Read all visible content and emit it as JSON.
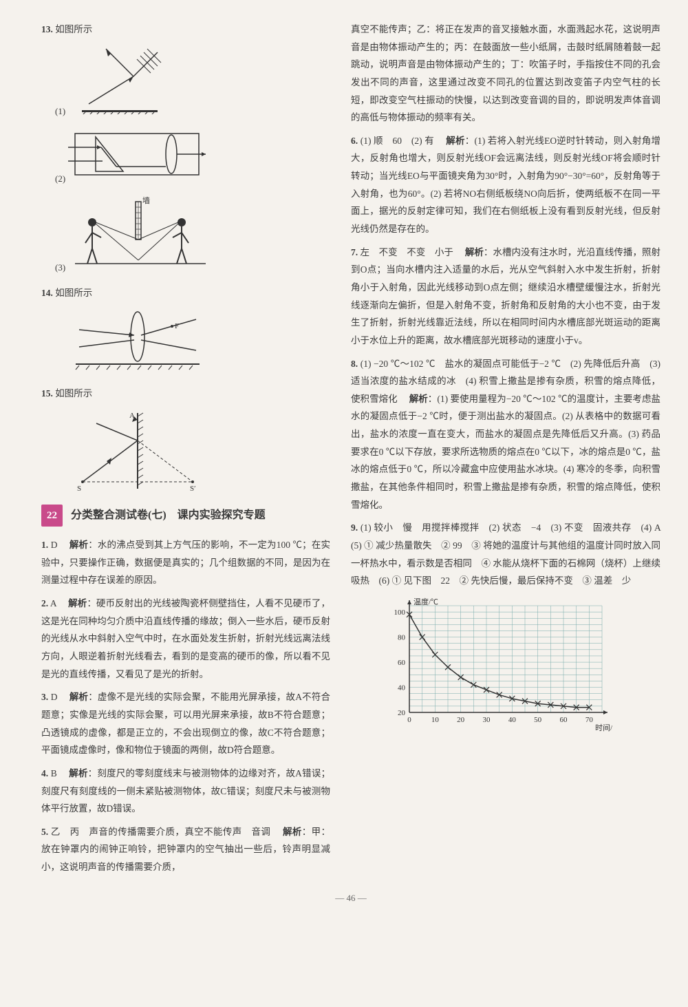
{
  "left": {
    "q13": {
      "num": "13.",
      "text": "如图所示"
    },
    "q13_labels": [
      "(1)",
      "(2)",
      "(3)",
      "墙"
    ],
    "q14": {
      "num": "14.",
      "text": "如图所示"
    },
    "q14_label": "F",
    "q15": {
      "num": "15.",
      "text": "如图所示"
    },
    "q15_labels": {
      "A": "A",
      "S": "S",
      "Sp": "S′"
    },
    "section": {
      "badge": "22",
      "title": "分类整合测试卷(七)　课内实验探究专题"
    },
    "a1": {
      "num": "1.",
      "letter": "D",
      "kw": "解析",
      "text": "：水的沸点受到其上方气压的影响，不一定为100 ℃；在实验中，只要操作正确，数据便是真实的；几个组数据的不同，是因为在测量过程中存在误差的原因。"
    },
    "a2": {
      "num": "2.",
      "letter": "A",
      "kw": "解析",
      "text": "：硬币反射出的光线被陶瓷杯侧壁挡住，人看不见硬币了，这是光在同种均匀介质中沿直线传播的缘故；倒入一些水后，硬币反射的光线从水中斜射入空气中时，在水面处发生折射，折射光线远离法线方向，人眼逆着折射光线看去，看到的是变高的硬币的像，所以看不见是光的直线传播，又看见了是光的折射。"
    },
    "a3": {
      "num": "3.",
      "letter": "D",
      "kw": "解析",
      "text": "：虚像不是光线的实际会聚，不能用光屏承接，故A不符合题意；实像是光线的实际会聚，可以用光屏来承接，故B不符合题意；凸透镜成的虚像，都是正立的，不会出现倒立的像，故C不符合题意；平面镜成虚像时，像和物位于镜面的两侧，故D符合题意。"
    },
    "a4": {
      "num": "4.",
      "letter": "B",
      "kw": "解析",
      "text": "：刻度尺的零刻度线末与被测物体的边缘对齐，故A错误；刻度尺有刻度线的一侧未紧贴被测物体，故C错误；刻度尺未与被测物体平行放置，故D错误。"
    },
    "a5": {
      "num": "5.",
      "ans": "乙　丙　声音的传播需要介质，真空不能传声　音调",
      "kw": "解析",
      "text": "：甲：放在钟罩内的闹钟正响铃，把钟罩内的空气抽出一些后，铃声明显减小，这说明声音的传播需要介质，"
    }
  },
  "right": {
    "cont5": "真空不能传声；乙：将正在发声的音叉接触水面，水面溅起水花，这说明声音是由物体振动产生的；丙：在鼓面放一些小纸屑，击鼓时纸屑随着鼓一起跳动，说明声音是由物体振动产生的；丁：吹笛子时，手指按住不同的孔会发出不同的声音，这里通过改变不同孔的位置达到改变笛子内空气柱的长短，即改变空气柱振动的快慢，以达到改变音调的目的，即说明发声体音调的高低与物体振动的频率有关。",
    "a6": {
      "num": "6.",
      "ans": "(1) 顺　60　(2) 有",
      "kw": "解析",
      "text": "：(1) 若将入射光线EO逆时针转动，则入射角增大，反射角也增大，则反射光线OF会远离法线，则反射光线OF将会顺时针转动；当光线EO与平面镜夹角为30°时，入射角为90°−30°=60°，反射角等于入射角，也为60°。(2) 若将NO右侧纸板绕NO向后折，使两纸板不在同一平面上，据光的反射定律可知，我们在右侧纸板上没有看到反射光线，但反射光线仍然是存在的。"
    },
    "a7": {
      "num": "7.",
      "ans": "左　不变　不变　小于",
      "kw": "解析",
      "text": "：水槽内没有注水时，光沿直线传播，照射到O点；当向水槽内注入适量的水后，光从空气斜射入水中发生折射，折射角小于入射角，因此光线移动到O点左侧；继续沿水槽壁缓慢注水，折射光线逐渐向左偏折，但是入射角不变，折射角和反射角的大小也不变，由于发生了折射，折射光线靠近法线，所以在相同时间内水槽底部光斑运动的距离小于水位上升的距离，故水槽底部光斑移动的速度小于v。"
    },
    "a8": {
      "num": "8.",
      "ans": "(1) −20 ℃～102 ℃　盐水的凝固点可能低于−2 ℃　(2) 先降低后升高　(3) 适当浓度的盐水结成的冰　(4) 积雪上撒盐是掺有杂质，积雪的熔点降低，使积雪熔化",
      "kw": "解析",
      "text": "：(1) 要使用量程为−20 ℃～102 ℃的温度计，主要考虑盐水的凝固点低于−2 ℃时，便于测出盐水的凝固点。(2) 从表格中的数据可看出，盐水的浓度一直在变大，而盐水的凝固点是先降低后又升高。(3) 药品要求在0 ℃以下存放，要求所选物质的熔点在0 ℃以下，冰的熔点是0 ℃，盐冰的熔点低于0 ℃，所以冷藏盒中应使用盐水冰块。(4) 寒冷的冬季，向积雪撒盐，在其他条件相同时，积雪上撒盐是掺有杂质，积雪的熔点降低，使积雪熔化。"
    },
    "a9": {
      "num": "9.",
      "ans": "(1) 较小　慢　用搅拌棒搅拌　(2) 状态　−4　(3) 不变　固液共存　(4) A　(5) ① 减少热量散失　② 99　③ 将她的温度计与其他组的温度计同时放入同一杯热水中，看示数是否相同　④ 水能从烧杯下面的石棉网（烧杯）上继续吸热　(6) ① 见下图　22　② 先快后慢，最后保持不变　③ 温差　少"
    },
    "chart": {
      "type": "line",
      "title_y": "温度/℃",
      "title_x": "时间/min",
      "xlim": [
        0,
        75
      ],
      "ylim": [
        20,
        105
      ],
      "xticks": [
        0,
        10,
        20,
        30,
        40,
        50,
        60,
        70
      ],
      "yticks": [
        20,
        40,
        60,
        80,
        100
      ],
      "grid_minor_x": 2,
      "grid_minor_y": 4,
      "grid_color": "#7aa",
      "axis_color": "#333",
      "line_color": "#333",
      "line_width": 1.5,
      "points_x": [
        0,
        5,
        10,
        15,
        20,
        25,
        30,
        35,
        40,
        45,
        50,
        55,
        60,
        65,
        70
      ],
      "points_y": [
        98,
        80,
        66,
        56,
        48,
        42,
        38,
        34,
        31,
        29,
        27,
        26,
        25,
        24,
        24
      ],
      "marker": "x",
      "marker_size": 4,
      "background_color": "#f5f2ed"
    }
  },
  "page_num": "— 46 —",
  "colors": {
    "badge_bg": "#c94a8a",
    "text": "#3a3a3a",
    "bg": "#f5f2ed"
  }
}
